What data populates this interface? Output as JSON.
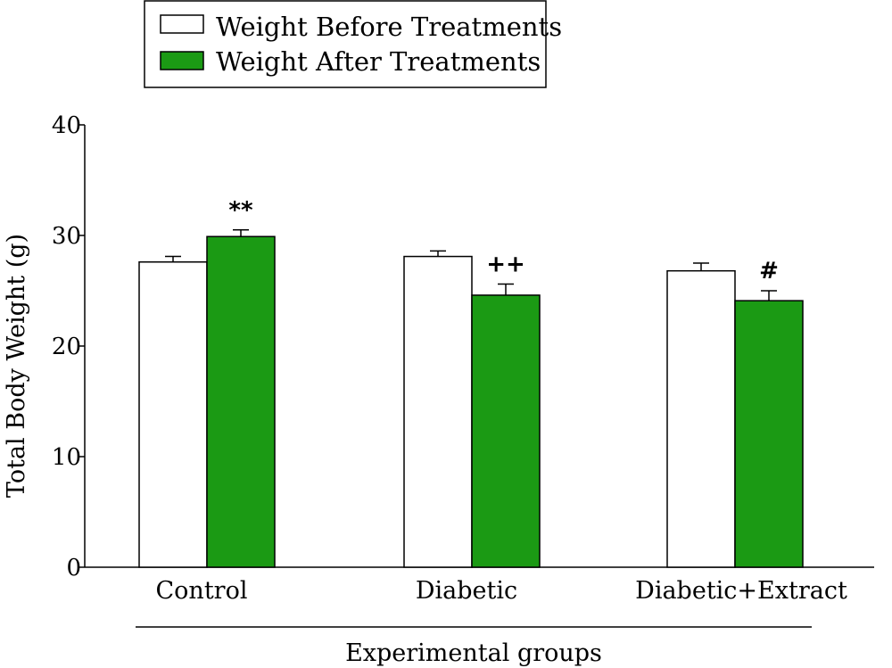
{
  "chart_data": {
    "type": "bar",
    "categories": [
      "Control",
      "Diabetic",
      "Diabetic+Extract"
    ],
    "series": [
      {
        "name": "Weight Before Treatments",
        "color": "#ffffff",
        "values": [
          27.6,
          28.1,
          26.8
        ],
        "errors": [
          0.5,
          0.5,
          0.7
        ]
      },
      {
        "name": "Weight After Treatments",
        "color": "#1b9a14",
        "values": [
          29.9,
          24.6,
          24.1
        ],
        "errors": [
          0.6,
          1.0,
          0.9
        ]
      }
    ],
    "annotations": [
      {
        "category": "Control",
        "series": "Weight After Treatments",
        "text": "**"
      },
      {
        "category": "Diabetic",
        "series": "Weight After Treatments",
        "text": "++"
      },
      {
        "category": "Diabetic+Extract",
        "series": "Weight After Treatments",
        "text": "#"
      }
    ],
    "ylabel": "Total Body Weight (g)",
    "xlabel": "Experimental groups",
    "ylim": [
      0,
      40
    ],
    "yticks": [
      "0",
      "10",
      "20",
      "30",
      "40"
    ],
    "grid": false,
    "legend_position": "top-left"
  }
}
